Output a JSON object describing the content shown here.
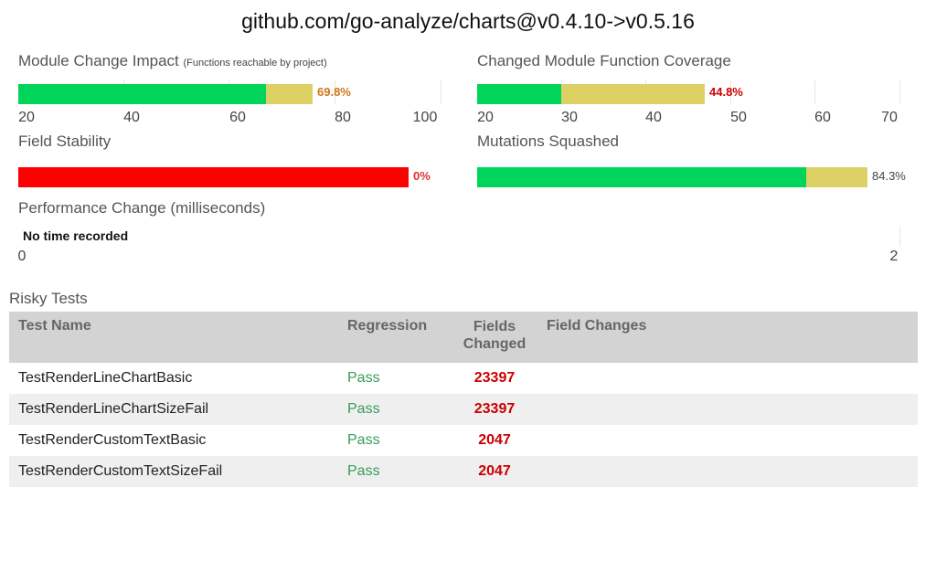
{
  "title": "github.com/go-analyze/charts@v0.4.10->v0.5.16",
  "colors": {
    "green": "#00d45a",
    "yellow": "#ddd065",
    "red": "#ff0000",
    "pass": "#3a9a5a",
    "fail": "#cc0000"
  },
  "module_impact": {
    "label": "Module Change Impact",
    "sublabel": "(Functions reachable by project)",
    "pct_label": "69.8%",
    "axis_ticks": [
      "20",
      "40",
      "60",
      "80",
      "100"
    ]
  },
  "function_coverage": {
    "label": "Changed Module Function Coverage",
    "pct_label": "44.8%",
    "axis_ticks": [
      "20",
      "30",
      "40",
      "50",
      "60",
      "70"
    ]
  },
  "field_stability": {
    "label": "Field Stability",
    "pct_label": "0%"
  },
  "mutations": {
    "label": "Mutations Squashed",
    "pct_label": "84.3%"
  },
  "performance": {
    "label": "Performance Change (milliseconds)",
    "message": "No time recorded",
    "axis_ticks": [
      "0",
      "2"
    ]
  },
  "risky_tests": {
    "label": "Risky Tests",
    "headers": {
      "test_name": "Test Name",
      "regression": "Regression",
      "fields_changed_1": "Fields",
      "fields_changed_2": "Changed",
      "field_changes": "Field Changes"
    },
    "rows": [
      {
        "name": "TestRenderLineChartBasic",
        "regression": "Pass",
        "fields_changed": "23397",
        "field_changes": ""
      },
      {
        "name": "TestRenderLineChartSizeFail",
        "regression": "Pass",
        "fields_changed": "23397",
        "field_changes": ""
      },
      {
        "name": "TestRenderCustomTextBasic",
        "regression": "Pass",
        "fields_changed": "2047",
        "field_changes": ""
      },
      {
        "name": "TestRenderCustomTextSizeFail",
        "regression": "Pass",
        "fields_changed": "2047",
        "field_changes": ""
      }
    ]
  }
}
